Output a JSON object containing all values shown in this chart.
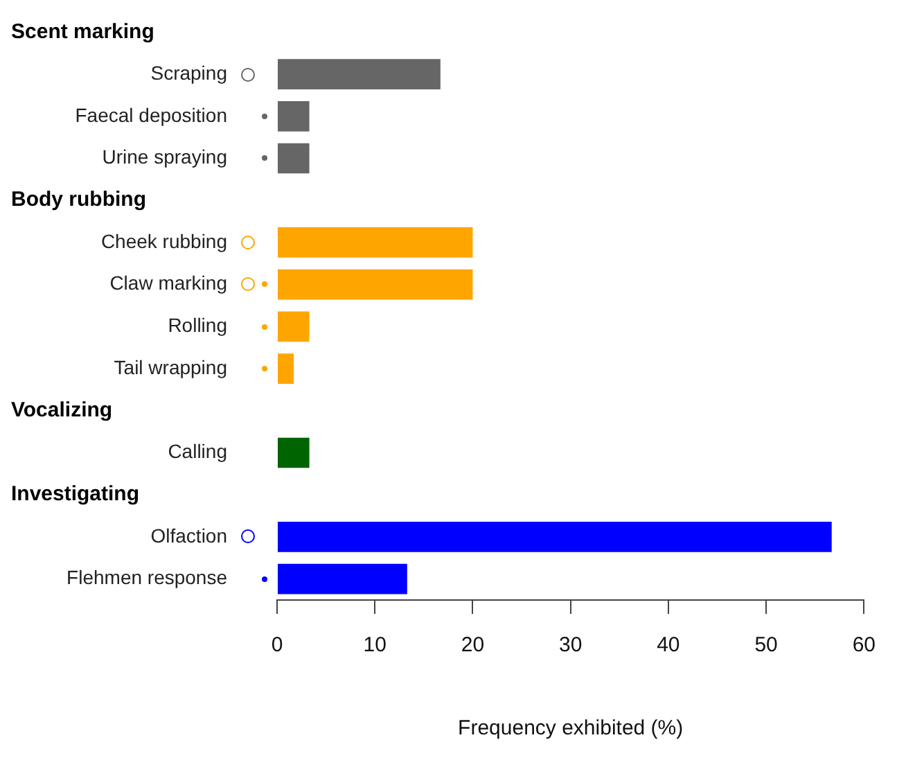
{
  "chart_data": {
    "type": "bar",
    "orientation": "horizontal",
    "xlabel": "Frequency exhibited (%)",
    "annotations": [
      "Scent marking",
      "Body rubbing",
      "Vocalizing",
      "Investigating"
    ],
    "categories": [
      null,
      "Scraping",
      "Faecal deposition",
      "Urine spraying",
      null,
      "Cheek rubbing",
      "Claw marking",
      "Rolling",
      "Tail wrapping",
      null,
      "Calling",
      null,
      "Olfaction",
      "Flehmen response"
    ],
    "values": [
      null,
      16.7,
      3.3,
      3.3,
      null,
      20,
      20,
      3.3,
      1.7,
      null,
      3.3,
      null,
      56.7,
      13.3
    ],
    "colors": [
      "#666666",
      "#666666",
      "#666666",
      "#666666",
      "#ffa500",
      "#ffa500",
      "#ffa500",
      "#ffa500",
      "#ffa500",
      "#006400",
      "#006400",
      "#0000ff",
      "#0000ff",
      "#0000ff"
    ],
    "xlim": [
      0,
      60
    ],
    "xticks": [
      0,
      10,
      20,
      30,
      40,
      50,
      60
    ],
    "grid": false,
    "legend": false
  }
}
